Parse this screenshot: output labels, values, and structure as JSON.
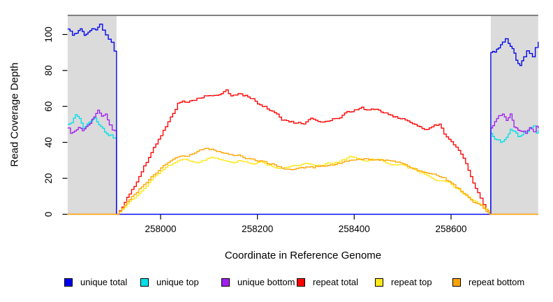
{
  "chart_data": {
    "type": "line",
    "title": "",
    "xlabel": "Coordinate in Reference Genome",
    "ylabel": "Read Coverage Depth",
    "xlim": [
      257808,
      258780
    ],
    "ylim": [
      0,
      110
    ],
    "x_ticks": [
      258000,
      258200,
      258400,
      258600
    ],
    "y_ticks": [
      0,
      20,
      40,
      60,
      80,
      100
    ],
    "grid": false,
    "legend_position": "bottom",
    "shaded_regions": [
      {
        "from": 257808,
        "to": 257909
      },
      {
        "from": 258682,
        "to": 258780
      }
    ],
    "series": [
      {
        "name": "unique total",
        "color": "#0000EE",
        "points": [
          [
            257808,
            103
          ],
          [
            257818,
            100
          ],
          [
            257826,
            102
          ],
          [
            257834,
            104
          ],
          [
            257842,
            101
          ],
          [
            257850,
            103
          ],
          [
            257858,
            105
          ],
          [
            257866,
            104
          ],
          [
            257874,
            106
          ],
          [
            257880,
            103
          ],
          [
            257886,
            100
          ],
          [
            257892,
            98
          ],
          [
            257898,
            96
          ],
          [
            257904,
            91
          ],
          [
            257909,
            89
          ],
          [
            257909,
            0
          ],
          [
            258682,
            0
          ],
          [
            258682,
            90
          ],
          [
            258690,
            91
          ],
          [
            258698,
            93
          ],
          [
            258706,
            95
          ],
          [
            258712,
            97
          ],
          [
            258718,
            94
          ],
          [
            258726,
            92
          ],
          [
            258734,
            86
          ],
          [
            258742,
            84
          ],
          [
            258750,
            88
          ],
          [
            258756,
            91
          ],
          [
            258762,
            89
          ],
          [
            258768,
            87
          ],
          [
            258774,
            92
          ],
          [
            258780,
            96
          ]
        ]
      },
      {
        "name": "unique top",
        "color": "#00E0E8",
        "points": [
          [
            257808,
            50
          ],
          [
            257816,
            53
          ],
          [
            257824,
            56
          ],
          [
            257832,
            54
          ],
          [
            257840,
            49
          ],
          [
            257848,
            51
          ],
          [
            257856,
            54
          ],
          [
            257864,
            55
          ],
          [
            257872,
            52
          ],
          [
            257880,
            50
          ],
          [
            257888,
            46
          ],
          [
            257896,
            45
          ],
          [
            257902,
            44
          ],
          [
            257909,
            41
          ],
          [
            257909,
            0
          ],
          [
            258682,
            0
          ],
          [
            258682,
            45
          ],
          [
            258690,
            43
          ],
          [
            258698,
            42
          ],
          [
            258706,
            41
          ],
          [
            258714,
            43
          ],
          [
            258722,
            46
          ],
          [
            258730,
            44
          ],
          [
            258738,
            42
          ],
          [
            258746,
            44
          ],
          [
            258754,
            47
          ],
          [
            258762,
            49
          ],
          [
            258770,
            51
          ],
          [
            258776,
            47
          ],
          [
            258780,
            48
          ]
        ]
      },
      {
        "name": "unique bottom",
        "color": "#A020F0",
        "points": [
          [
            257808,
            48
          ],
          [
            257814,
            45
          ],
          [
            257822,
            46
          ],
          [
            257830,
            47
          ],
          [
            257838,
            46
          ],
          [
            257846,
            48
          ],
          [
            257854,
            50
          ],
          [
            257862,
            53
          ],
          [
            257870,
            56
          ],
          [
            257878,
            54
          ],
          [
            257886,
            56
          ],
          [
            257894,
            50
          ],
          [
            257900,
            48
          ],
          [
            257909,
            47
          ],
          [
            257909,
            0
          ],
          [
            258682,
            0
          ],
          [
            258682,
            48
          ],
          [
            258690,
            51
          ],
          [
            258698,
            53
          ],
          [
            258706,
            54
          ],
          [
            258714,
            52
          ],
          [
            258722,
            54
          ],
          [
            258730,
            48
          ],
          [
            258738,
            46
          ],
          [
            258746,
            45
          ],
          [
            258754,
            44
          ],
          [
            258762,
            46
          ],
          [
            258770,
            45
          ],
          [
            258776,
            49
          ],
          [
            258780,
            47
          ]
        ]
      },
      {
        "name": "repeat total",
        "color": "#FF0000",
        "points": [
          [
            257808,
            0
          ],
          [
            257909,
            0
          ],
          [
            257920,
            4
          ],
          [
            257935,
            11
          ],
          [
            257950,
            18
          ],
          [
            257965,
            26
          ],
          [
            257980,
            33
          ],
          [
            257995,
            41
          ],
          [
            258010,
            48
          ],
          [
            258025,
            55
          ],
          [
            258035,
            61
          ],
          [
            258045,
            63
          ],
          [
            258060,
            63
          ],
          [
            258075,
            65
          ],
          [
            258090,
            66
          ],
          [
            258105,
            67
          ],
          [
            258120,
            66
          ],
          [
            258135,
            68
          ],
          [
            258145,
            65
          ],
          [
            258160,
            66
          ],
          [
            258175,
            65
          ],
          [
            258190,
            63
          ],
          [
            258205,
            60
          ],
          [
            258220,
            58
          ],
          [
            258235,
            56
          ],
          [
            258250,
            53
          ],
          [
            258265,
            52
          ],
          [
            258280,
            51
          ],
          [
            258295,
            50
          ],
          [
            258310,
            52
          ],
          [
            258325,
            50
          ],
          [
            258340,
            51
          ],
          [
            258355,
            53
          ],
          [
            258370,
            55
          ],
          [
            258385,
            58
          ],
          [
            258400,
            59
          ],
          [
            258415,
            60
          ],
          [
            258430,
            58
          ],
          [
            258445,
            59
          ],
          [
            258460,
            58
          ],
          [
            258475,
            56
          ],
          [
            258490,
            55
          ],
          [
            258505,
            54
          ],
          [
            258520,
            52
          ],
          [
            258535,
            50
          ],
          [
            258550,
            48
          ],
          [
            258565,
            50
          ],
          [
            258575,
            51
          ],
          [
            258585,
            46
          ],
          [
            258600,
            42
          ],
          [
            258615,
            36
          ],
          [
            258630,
            28
          ],
          [
            258645,
            19
          ],
          [
            258660,
            10
          ],
          [
            258672,
            4
          ],
          [
            258680,
            0
          ],
          [
            258780,
            0
          ]
        ]
      },
      {
        "name": "repeat top",
        "color": "#FFE81A",
        "points": [
          [
            257808,
            0
          ],
          [
            257909,
            0
          ],
          [
            257925,
            4
          ],
          [
            257940,
            9
          ],
          [
            257955,
            13
          ],
          [
            257970,
            17
          ],
          [
            257985,
            21
          ],
          [
            258000,
            25
          ],
          [
            258015,
            28
          ],
          [
            258030,
            30
          ],
          [
            258045,
            32
          ],
          [
            258060,
            31
          ],
          [
            258075,
            30
          ],
          [
            258090,
            31
          ],
          [
            258105,
            33
          ],
          [
            258120,
            32
          ],
          [
            258135,
            31
          ],
          [
            258150,
            30
          ],
          [
            258165,
            31
          ],
          [
            258180,
            30
          ],
          [
            258195,
            29
          ],
          [
            258210,
            29
          ],
          [
            258225,
            28
          ],
          [
            258240,
            27
          ],
          [
            258255,
            26
          ],
          [
            258270,
            27
          ],
          [
            258285,
            26
          ],
          [
            258300,
            27
          ],
          [
            258315,
            26
          ],
          [
            258330,
            26
          ],
          [
            258345,
            28
          ],
          [
            258360,
            29
          ],
          [
            258375,
            30
          ],
          [
            258390,
            31
          ],
          [
            258405,
            31
          ],
          [
            258420,
            30
          ],
          [
            258435,
            31
          ],
          [
            258450,
            30
          ],
          [
            258465,
            29
          ],
          [
            258480,
            28
          ],
          [
            258495,
            27
          ],
          [
            258510,
            25
          ],
          [
            258525,
            24
          ],
          [
            258540,
            23
          ],
          [
            258555,
            22
          ],
          [
            258570,
            20
          ],
          [
            258585,
            18
          ],
          [
            258600,
            16
          ],
          [
            258615,
            13
          ],
          [
            258630,
            10
          ],
          [
            258645,
            7
          ],
          [
            258660,
            4
          ],
          [
            258675,
            1
          ],
          [
            258680,
            0
          ],
          [
            258780,
            0
          ]
        ]
      },
      {
        "name": "repeat bottom",
        "color": "#FFA500",
        "points": [
          [
            257808,
            0
          ],
          [
            257909,
            0
          ],
          [
            257925,
            5
          ],
          [
            257940,
            10
          ],
          [
            257955,
            15
          ],
          [
            257970,
            19
          ],
          [
            257985,
            23
          ],
          [
            258000,
            27
          ],
          [
            258015,
            30
          ],
          [
            258030,
            32
          ],
          [
            258045,
            33
          ],
          [
            258060,
            34
          ],
          [
            258075,
            36
          ],
          [
            258090,
            38
          ],
          [
            258105,
            37
          ],
          [
            258120,
            36
          ],
          [
            258135,
            35
          ],
          [
            258150,
            34
          ],
          [
            258165,
            33
          ],
          [
            258180,
            32
          ],
          [
            258195,
            31
          ],
          [
            258210,
            30
          ],
          [
            258225,
            28
          ],
          [
            258240,
            27
          ],
          [
            258255,
            26
          ],
          [
            258270,
            25
          ],
          [
            258285,
            25
          ],
          [
            258300,
            26
          ],
          [
            258315,
            26
          ],
          [
            258330,
            27
          ],
          [
            258345,
            28
          ],
          [
            258360,
            29
          ],
          [
            258375,
            30
          ],
          [
            258390,
            30
          ],
          [
            258405,
            31
          ],
          [
            258420,
            32
          ],
          [
            258435,
            31
          ],
          [
            258450,
            31
          ],
          [
            258465,
            30
          ],
          [
            258480,
            29
          ],
          [
            258495,
            28
          ],
          [
            258510,
            27
          ],
          [
            258525,
            26
          ],
          [
            258540,
            25
          ],
          [
            258555,
            24
          ],
          [
            258570,
            23
          ],
          [
            258585,
            21
          ],
          [
            258600,
            18
          ],
          [
            258615,
            15
          ],
          [
            258630,
            12
          ],
          [
            258645,
            8
          ],
          [
            258660,
            5
          ],
          [
            258672,
            2
          ],
          [
            258680,
            0
          ],
          [
            258780,
            0
          ]
        ]
      }
    ]
  },
  "colors": {
    "shade": "#DBDBDB",
    "top_boundary_line": "#808080",
    "axis": "#000000",
    "background": "#FFFFFF"
  }
}
